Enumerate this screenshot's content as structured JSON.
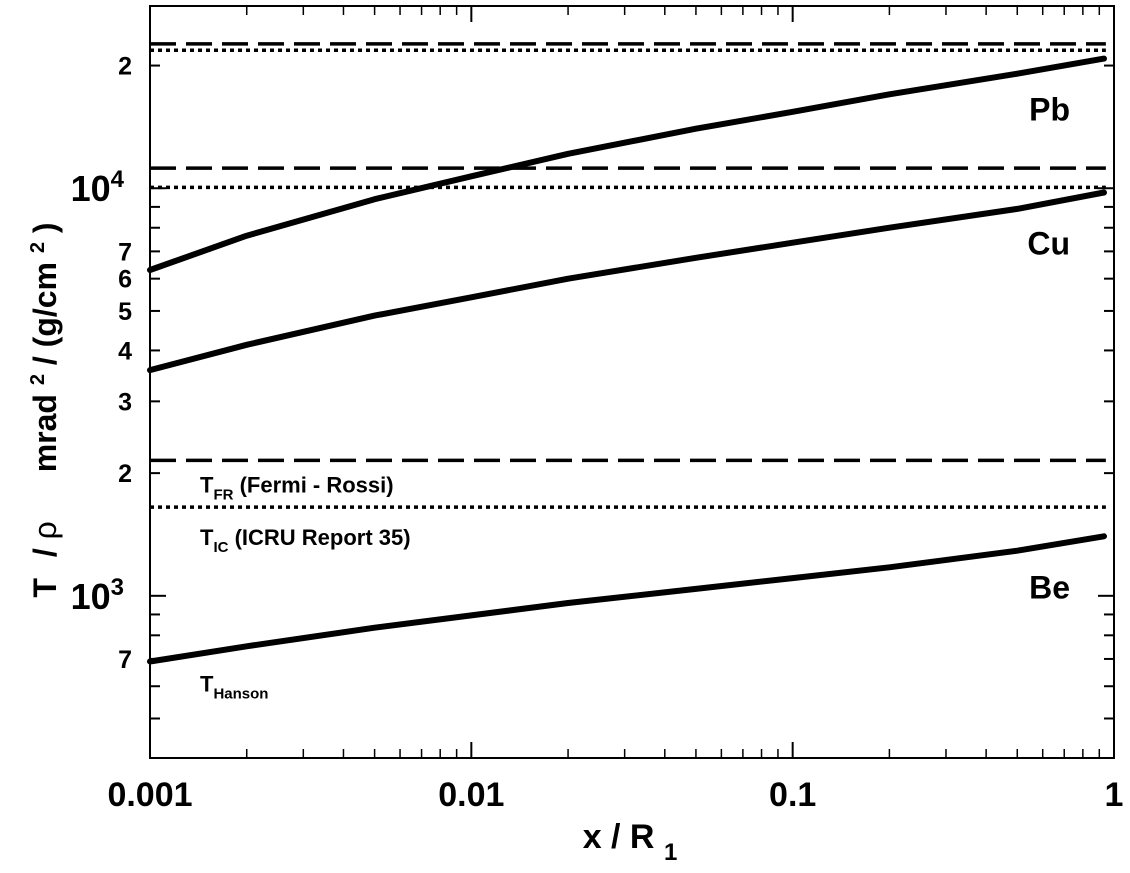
{
  "chart_data": {
    "type": "line",
    "x_scale": "log",
    "y_scale": "log",
    "xlim": [
      0.001,
      1
    ],
    "ylim": [
      400,
      28000
    ],
    "grid": false,
    "x_axis": {
      "label_main": "x / R",
      "label_sub": "1",
      "major_ticks": [
        0.001,
        0.01,
        0.1,
        1
      ],
      "major_tick_labels": [
        "0.001",
        "0.01",
        "0.1",
        "1"
      ]
    },
    "y_axis": {
      "label_parts": [
        "T",
        "/",
        "ρ",
        "mrad",
        "2",
        " / (g/cm",
        "2",
        ")"
      ],
      "labeled_ticks": [
        {
          "value": 700,
          "label": "7"
        },
        {
          "value": 1000,
          "label": "10",
          "sup": "3"
        },
        {
          "value": 2000,
          "label": "2"
        },
        {
          "value": 3000,
          "label": "3"
        },
        {
          "value": 4000,
          "label": "4"
        },
        {
          "value": 5000,
          "label": "5"
        },
        {
          "value": 6000,
          "label": "6"
        },
        {
          "value": 7000,
          "label": "7"
        },
        {
          "value": 10000,
          "label": "10",
          "sup": "4"
        },
        {
          "value": 20000,
          "label": "2"
        }
      ],
      "minor_ticks": [
        500,
        600,
        800,
        900,
        8000,
        9000
      ]
    },
    "materials": [
      {
        "name": "Pb",
        "t_fr": 22600,
        "t_ic": 21800,
        "hanson": {
          "x": [
            0.001,
            0.002,
            0.005,
            0.01,
            0.02,
            0.05,
            0.1,
            0.2,
            0.5,
            1.0
          ],
          "y": [
            6300,
            7650,
            9400,
            10700,
            12150,
            14000,
            15400,
            17000,
            19100,
            20800
          ]
        }
      },
      {
        "name": "Cu",
        "t_fr": 11200,
        "t_ic": 10050,
        "hanson": {
          "x": [
            0.001,
            0.002,
            0.005,
            0.01,
            0.02,
            0.05,
            0.1,
            0.2,
            0.5,
            1.0
          ],
          "y": [
            3580,
            4130,
            4870,
            5400,
            6000,
            6750,
            7350,
            8000,
            8900,
            9760
          ]
        }
      },
      {
        "name": "Be",
        "t_fr": 2150,
        "t_ic": 1650,
        "hanson": {
          "x": [
            0.001,
            0.002,
            0.005,
            0.01,
            0.02,
            0.05,
            0.1,
            0.2,
            0.5,
            1.0
          ],
          "y": [
            690,
            752,
            835,
            895,
            960,
            1040,
            1105,
            1175,
            1290,
            1400
          ]
        }
      }
    ],
    "series_labels": {
      "fr": {
        "main": "T",
        "sub": "FR",
        "rest": " (Fermi - Rossi)"
      },
      "ic": {
        "main": "T",
        "sub": "IC",
        "rest": " (ICRU Report 35)"
      },
      "hanson": {
        "main": "T",
        "sub": "Hanson"
      }
    },
    "line_styles": {
      "fr": "long-dashed",
      "ic": "dotted",
      "hanson": "solid-thick"
    }
  }
}
